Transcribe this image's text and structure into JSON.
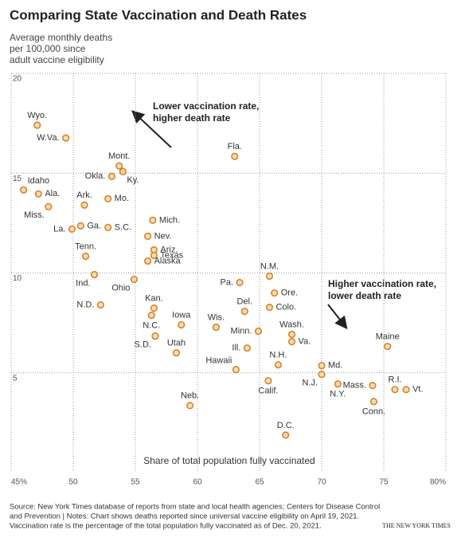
{
  "chart_data": {
    "type": "scatter",
    "title": "Comparing State Vaccination and Death Rates",
    "y_axis_label": [
      "Average monthly deaths",
      "per 100,000 since",
      "adult vaccine eligibility"
    ],
    "x_axis_label": "Share of total population fully vaccinated",
    "annotations": [
      [
        "Lower vaccination rate,",
        "higher death rate"
      ],
      [
        "Higher vaccination rate,",
        "lower death rate"
      ]
    ],
    "point_labels": [
      "Wyo.",
      "W.Va.",
      "Mont.",
      "Ky.",
      "Okla.",
      "Idaho",
      "Ala.",
      "Ark.",
      "Mo.",
      "Miss.",
      "Mich.",
      "La.",
      "Ga.",
      "S.C.",
      "Nev.",
      "Ariz.",
      "Texas",
      "Alaska",
      "Tenn.",
      "Ind.",
      "Ohio",
      "N.D.",
      "Kan.",
      "N.C.",
      "Iowa",
      "S.D.",
      "Utah",
      "Neb.",
      "Fla.",
      "Pa.",
      "N.M.",
      "Del.",
      "Ore.",
      "Colo.",
      "Wis.",
      "Minn.",
      "Wash.",
      "Va.",
      "Ill.",
      "N.H.",
      "Hawaii",
      "Calif.",
      "Md.",
      "N.J.",
      "N.Y.",
      "Mass.",
      "Conn.",
      "R.I.",
      "Vt.",
      "Maine",
      "D.C."
    ],
    "x": [
      47.1,
      49.4,
      53.7,
      54.0,
      53.1,
      46.0,
      47.2,
      50.9,
      52.8,
      48.0,
      56.4,
      49.9,
      50.6,
      52.8,
      56.0,
      56.5,
      56.5,
      56.0,
      51.0,
      51.7,
      54.9,
      52.2,
      56.5,
      56.3,
      58.7,
      56.6,
      58.3,
      59.4,
      63.0,
      63.4,
      65.8,
      63.8,
      66.2,
      65.8,
      61.5,
      64.9,
      67.6,
      67.6,
      64.0,
      66.5,
      63.1,
      65.7,
      70.0,
      70.0,
      71.3,
      74.1,
      74.2,
      75.9,
      76.8,
      75.3,
      67.1
    ],
    "values": [
      17.4,
      16.76,
      15.36,
      15.08,
      14.84,
      14.16,
      13.96,
      13.4,
      13.72,
      13.32,
      12.64,
      12.2,
      12.36,
      12.28,
      11.84,
      11.16,
      10.88,
      10.6,
      10.84,
      9.92,
      9.68,
      8.4,
      8.24,
      7.88,
      7.4,
      6.84,
      6.0,
      3.36,
      15.84,
      9.52,
      9.84,
      8.08,
      9.0,
      8.28,
      7.28,
      7.08,
      6.92,
      6.56,
      6.24,
      5.4,
      5.16,
      4.6,
      5.36,
      4.92,
      4.44,
      4.36,
      3.56,
      4.16,
      4.16,
      6.32,
      1.88
    ],
    "color": "#d9822b",
    "xlim": [
      45,
      80
    ],
    "ylim": [
      0,
      20
    ],
    "xticks": [
      {
        "value": 45,
        "label": "45%"
      },
      50,
      55,
      60,
      65,
      70,
      75,
      {
        "value": 80,
        "label": "80%"
      }
    ],
    "yticks": [
      5,
      10,
      15,
      20
    ],
    "grid": true,
    "notes": [
      "Source: New York Times database of reports from state and local health agencies; Centers for Disease Control",
      "and Prevention | Notes: Chart shows deaths reported since universal vaccine eligibility on April 19, 2021.",
      "Vaccination rate is the percentage of the total population fully vaccinated as of Dec. 20, 2021."
    ],
    "credit": "THE NEW YORK TIMES"
  }
}
